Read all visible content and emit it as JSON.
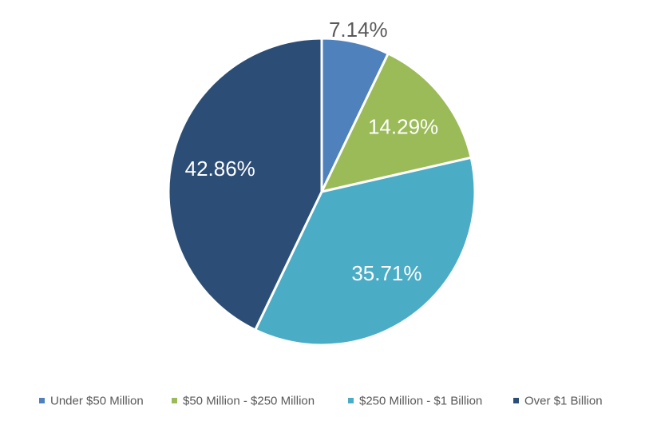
{
  "chart_data": {
    "type": "pie",
    "title": "",
    "legend_position": "bottom",
    "start_angle_deg": 0,
    "direction": "clockwise",
    "slices": [
      {
        "name": "Under $50 Million",
        "value": 7.14,
        "label": "7.14%",
        "color": "#4F81BD",
        "label_color": "#595959",
        "label_outside": true
      },
      {
        "name": "$50 Million - $250 Million",
        "value": 14.29,
        "label": "14.29%",
        "color": "#9BBB59",
        "label_color": "#ffffff",
        "label_outside": false
      },
      {
        "name": "$250 Million - $1 Billion",
        "value": 35.71,
        "label": "35.71%",
        "color": "#4BACC6",
        "label_color": "#ffffff",
        "label_outside": false
      },
      {
        "name": "Over $1 Billion",
        "value": 42.86,
        "label": "42.86%",
        "color": "#2C4D75",
        "label_color": "#ffffff",
        "label_outside": false
      }
    ]
  }
}
